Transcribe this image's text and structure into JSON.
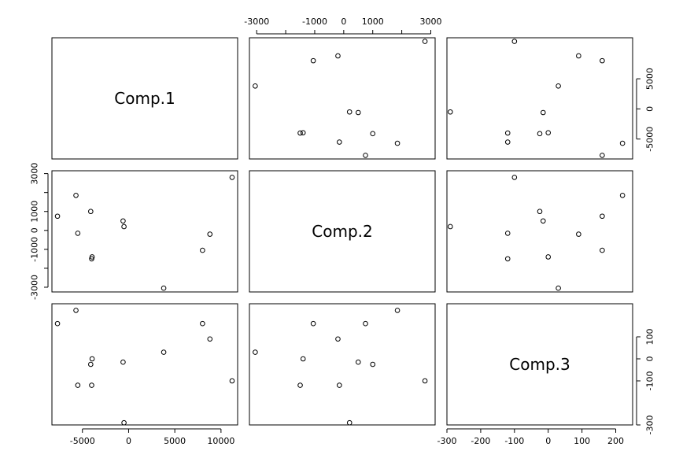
{
  "chart_data": {
    "type": "scatter",
    "variables": [
      "Comp.1",
      "Comp.2",
      "Comp.3"
    ],
    "ranges": {
      "Comp.1": [
        -8300,
        11800
      ],
      "Comp.2": [
        -3250,
        3150
      ],
      "Comp.3": [
        -300,
        250
      ]
    },
    "ticks": {
      "Comp.1": {
        "values": [
          -5000,
          0,
          5000,
          10000
        ],
        "labels": [
          "-5000",
          "0",
          "5000",
          "10000"
        ]
      },
      "Comp.2": {
        "values": [
          -3000,
          -2000,
          -1000,
          0,
          1000,
          2000,
          3000
        ],
        "labels": [
          "-3000",
          "",
          "-1000",
          "0",
          "1000",
          "",
          "3000"
        ]
      },
      "Comp.3": {
        "values": [
          -300,
          -200,
          -100,
          0,
          100,
          200
        ],
        "labels": [
          "-300",
          "-200",
          "-100",
          "0",
          "100",
          "200"
        ]
      }
    },
    "ticks_right": {
      "Comp.1": {
        "values": [
          -5000,
          0,
          5000
        ],
        "labels": [
          "-5000",
          "0",
          "5000"
        ]
      },
      "Comp.2": {
        "values": [
          -3000,
          -1000,
          1000,
          3000
        ],
        "labels": [
          "-3000",
          "-1000",
          "1000",
          "3000"
        ]
      },
      "Comp.3": {
        "values": [
          -300,
          -100,
          0,
          100
        ],
        "labels": [
          "-300",
          "-100",
          "0",
          "100"
        ]
      }
    },
    "points": [
      {
        "c1": -7700,
        "c2": 750,
        "c3": 160
      },
      {
        "c1": -5700,
        "c2": 1850,
        "c3": 220
      },
      {
        "c1": -5500,
        "c2": -150,
        "c3": -120
      },
      {
        "c1": -4100,
        "c2": 1000,
        "c3": -25
      },
      {
        "c1": -4000,
        "c2": -1500,
        "c3": -120
      },
      {
        "c1": -3950,
        "c2": -1400,
        "c3": 0
      },
      {
        "c1": -600,
        "c2": 500,
        "c3": -15
      },
      {
        "c1": -500,
        "c2": 200,
        "c3": -290
      },
      {
        "c1": 3800,
        "c2": -3050,
        "c3": 30
      },
      {
        "c1": 8000,
        "c2": -1050,
        "c3": 160
      },
      {
        "c1": 8800,
        "c2": -200,
        "c3": 90
      },
      {
        "c1": 11200,
        "c2": 2800,
        "c3": -100
      }
    ],
    "grid": false,
    "legend": "none"
  }
}
